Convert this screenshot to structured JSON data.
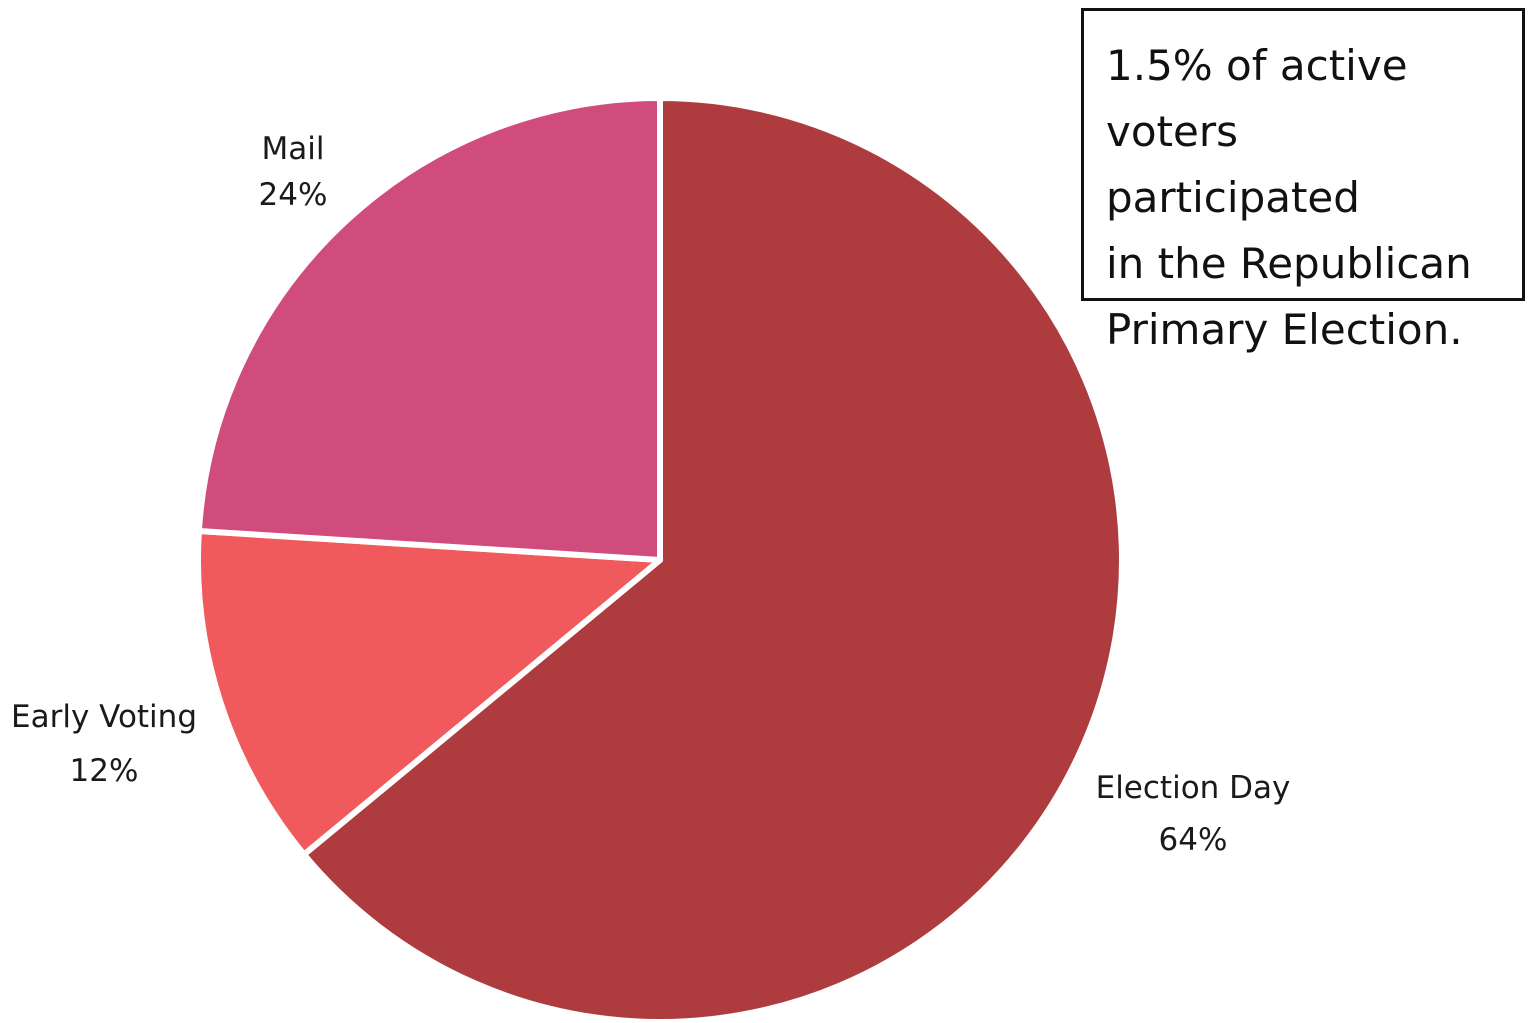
{
  "chart_data": {
    "type": "pie",
    "categories": [
      "Election Day",
      "Early Voting",
      "Mail"
    ],
    "values": [
      64,
      12,
      24
    ],
    "value_labels": [
      "64%",
      "12%",
      "24%"
    ],
    "colors": [
      "#ae3c3e",
      "#f05a5c",
      "#cf4c7c"
    ],
    "start_angle_deg": 0,
    "direction": "clockwise"
  },
  "note": {
    "lines": [
      "1.5% of active",
      "voters participated",
      "in the Republican",
      "Primary Election."
    ]
  }
}
